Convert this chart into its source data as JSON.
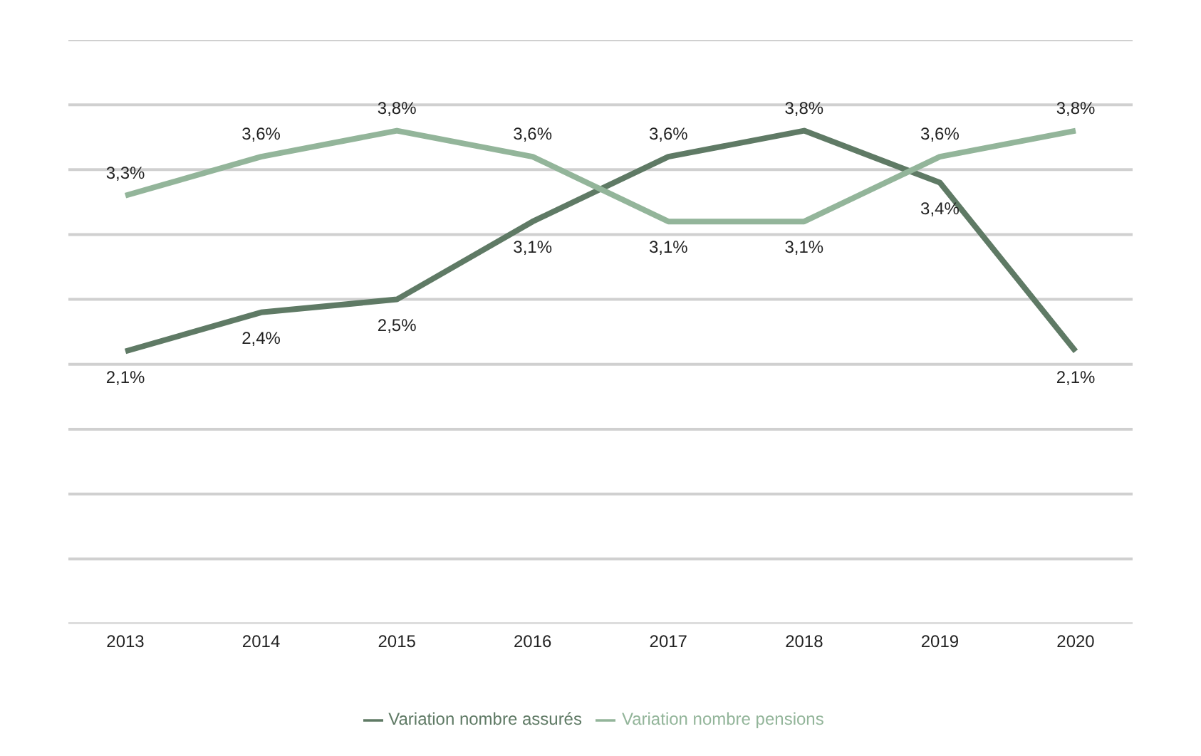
{
  "chart_data": {
    "type": "line",
    "categories": [
      "2013",
      "2014",
      "2015",
      "2016",
      "2017",
      "2018",
      "2019",
      "2020"
    ],
    "series": [
      {
        "name": "Variation nombre assurés",
        "color": "#5f7a65",
        "values": [
          2.1,
          2.4,
          2.5,
          3.1,
          3.6,
          3.8,
          3.4,
          2.1
        ],
        "value_labels": [
          "2,1%",
          "2,4%",
          "2,5%",
          "3,1%",
          "3,6%",
          "3,8%",
          "3,4%",
          "2,1%"
        ]
      },
      {
        "name": "Variation nombre pensions",
        "color": "#93b59a",
        "values": [
          3.3,
          3.6,
          3.8,
          3.6,
          3.1,
          3.1,
          3.6,
          3.8
        ],
        "value_labels": [
          "3,3%",
          "3,6%",
          "3,8%",
          "3,6%",
          "3,1%",
          "3,1%",
          "3,6%",
          "3,8%"
        ]
      }
    ],
    "ylim": [
      0,
      4.5
    ],
    "yticks": [
      {
        "value": 0,
        "label": null
      },
      {
        "value": 0.5,
        "label": null
      },
      {
        "value": 1,
        "label": null
      },
      {
        "value": 1.5,
        "label": null
      },
      {
        "value": 2,
        "label": null
      },
      {
        "value": 2.5,
        "label": null
      },
      {
        "value": 3,
        "label": null
      },
      {
        "value": 3.5,
        "label": null
      },
      {
        "value": 4,
        "label": null
      },
      {
        "value": 4.5,
        "label": null
      }
    ],
    "tick_labels": "x",
    "grid": "y",
    "legend": "bottom",
    "marker": "none",
    "line_style": "solid"
  }
}
